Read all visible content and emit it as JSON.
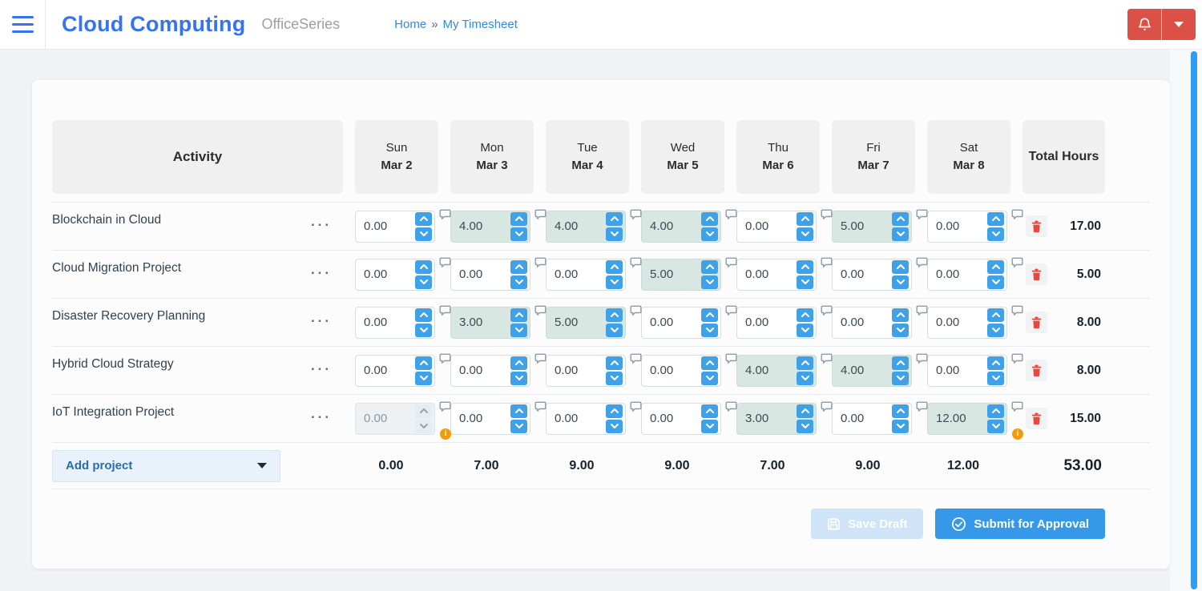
{
  "header": {
    "app_title": "Cloud Computing",
    "suite_name": "OfficeSeries",
    "breadcrumb": {
      "home": "Home",
      "separator": "»",
      "current": "My Timesheet"
    }
  },
  "glyphs": {
    "row_menu_ellipsis": "···",
    "warning_info": "i"
  },
  "colors": {
    "brand_blue": "#3474f0",
    "link_blue": "#2d8be0",
    "spinner_blue": "#3fa2e9",
    "filled_cell_bg": "#d8e7e1",
    "danger_red": "#dc5147",
    "trash_red": "#e8473d",
    "warning_orange": "#f59b0a",
    "submit_blue": "#3598e8",
    "save_draft_disabled_bg": "#cfe4f7",
    "scrollbar_blue": "#2f9df2"
  },
  "timesheet": {
    "columns": {
      "activity": "Activity",
      "total": "Total Hours",
      "days": [
        {
          "day": "Sun",
          "date": "Mar 2"
        },
        {
          "day": "Mon",
          "date": "Mar 3"
        },
        {
          "day": "Tue",
          "date": "Mar 4"
        },
        {
          "day": "Wed",
          "date": "Mar 5"
        },
        {
          "day": "Thu",
          "date": "Mar 6"
        },
        {
          "day": "Fri",
          "date": "Mar 7"
        },
        {
          "day": "Sat",
          "date": "Mar 8"
        }
      ]
    },
    "rows": [
      {
        "activity": "Blockchain in Cloud",
        "total": "17.00",
        "cells": [
          {
            "value": "0.00",
            "filled": false,
            "disabled": false,
            "warning": false
          },
          {
            "value": "4.00",
            "filled": true,
            "disabled": false,
            "warning": false
          },
          {
            "value": "4.00",
            "filled": true,
            "disabled": false,
            "warning": false
          },
          {
            "value": "4.00",
            "filled": true,
            "disabled": false,
            "warning": false
          },
          {
            "value": "0.00",
            "filled": false,
            "disabled": false,
            "warning": false
          },
          {
            "value": "5.00",
            "filled": true,
            "disabled": false,
            "warning": false
          },
          {
            "value": "0.00",
            "filled": false,
            "disabled": false,
            "warning": false
          }
        ]
      },
      {
        "activity": "Cloud Migration Project",
        "total": "5.00",
        "cells": [
          {
            "value": "0.00",
            "filled": false,
            "disabled": false,
            "warning": false
          },
          {
            "value": "0.00",
            "filled": false,
            "disabled": false,
            "warning": false
          },
          {
            "value": "0.00",
            "filled": false,
            "disabled": false,
            "warning": false
          },
          {
            "value": "5.00",
            "filled": true,
            "disabled": false,
            "warning": false
          },
          {
            "value": "0.00",
            "filled": false,
            "disabled": false,
            "warning": false
          },
          {
            "value": "0.00",
            "filled": false,
            "disabled": false,
            "warning": false
          },
          {
            "value": "0.00",
            "filled": false,
            "disabled": false,
            "warning": false
          }
        ]
      },
      {
        "activity": "Disaster Recovery Planning",
        "total": "8.00",
        "cells": [
          {
            "value": "0.00",
            "filled": false,
            "disabled": false,
            "warning": false
          },
          {
            "value": "3.00",
            "filled": true,
            "disabled": false,
            "warning": false
          },
          {
            "value": "5.00",
            "filled": true,
            "disabled": false,
            "warning": false
          },
          {
            "value": "0.00",
            "filled": false,
            "disabled": false,
            "warning": false
          },
          {
            "value": "0.00",
            "filled": false,
            "disabled": false,
            "warning": false
          },
          {
            "value": "0.00",
            "filled": false,
            "disabled": false,
            "warning": false
          },
          {
            "value": "0.00",
            "filled": false,
            "disabled": false,
            "warning": false
          }
        ]
      },
      {
        "activity": "Hybrid Cloud Strategy",
        "total": "8.00",
        "cells": [
          {
            "value": "0.00",
            "filled": false,
            "disabled": false,
            "warning": false
          },
          {
            "value": "0.00",
            "filled": false,
            "disabled": false,
            "warning": false
          },
          {
            "value": "0.00",
            "filled": false,
            "disabled": false,
            "warning": false
          },
          {
            "value": "0.00",
            "filled": false,
            "disabled": false,
            "warning": false
          },
          {
            "value": "4.00",
            "filled": true,
            "disabled": false,
            "warning": false
          },
          {
            "value": "4.00",
            "filled": true,
            "disabled": false,
            "warning": false
          },
          {
            "value": "0.00",
            "filled": false,
            "disabled": false,
            "warning": false
          }
        ]
      },
      {
        "activity": "IoT Integration Project",
        "total": "15.00",
        "cells": [
          {
            "value": "0.00",
            "filled": false,
            "disabled": true,
            "warning": true
          },
          {
            "value": "0.00",
            "filled": false,
            "disabled": false,
            "warning": false
          },
          {
            "value": "0.00",
            "filled": false,
            "disabled": false,
            "warning": false
          },
          {
            "value": "0.00",
            "filled": false,
            "disabled": false,
            "warning": false
          },
          {
            "value": "3.00",
            "filled": true,
            "disabled": false,
            "warning": false
          },
          {
            "value": "0.00",
            "filled": false,
            "disabled": false,
            "warning": false
          },
          {
            "value": "12.00",
            "filled": true,
            "disabled": false,
            "warning": true
          }
        ]
      }
    ],
    "footer": {
      "add_project_label": "Add project",
      "day_totals": [
        "0.00",
        "7.00",
        "9.00",
        "9.00",
        "7.00",
        "9.00",
        "12.00"
      ],
      "grand_total": "53.00"
    },
    "actions": {
      "save_draft": "Save Draft",
      "submit": "Submit for Approval"
    }
  }
}
